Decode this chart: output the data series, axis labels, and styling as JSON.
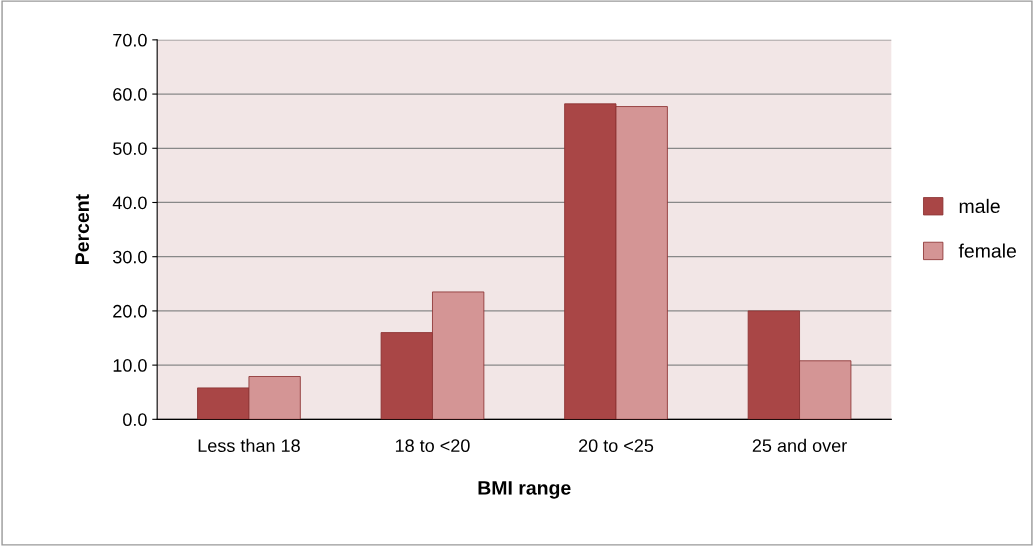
{
  "chart_data": {
    "type": "bar",
    "xlabel": "BMI range",
    "ylabel": "Percent",
    "categories": [
      "Less than 18",
      "18 to <20",
      "20 to <25",
      "25 and over"
    ],
    "series": [
      {
        "name": "male",
        "color": "#a94646",
        "values": [
          5.8,
          16.0,
          58.2,
          20.0
        ]
      },
      {
        "name": "female",
        "color": "#d49595",
        "values": [
          7.9,
          23.5,
          57.7,
          10.8
        ]
      }
    ],
    "ylim": [
      0,
      70
    ],
    "yticks": [
      {
        "value": 0,
        "label": "0.0"
      },
      {
        "value": 10,
        "label": "10.0"
      },
      {
        "value": 20,
        "label": "20.0"
      },
      {
        "value": 30,
        "label": "30.0"
      },
      {
        "value": 40,
        "label": "40.0"
      },
      {
        "value": 50,
        "label": "50.0"
      },
      {
        "value": 60,
        "label": "60.0"
      },
      {
        "value": 70,
        "label": "70.0"
      }
    ],
    "grid": "y",
    "legend": "right"
  }
}
